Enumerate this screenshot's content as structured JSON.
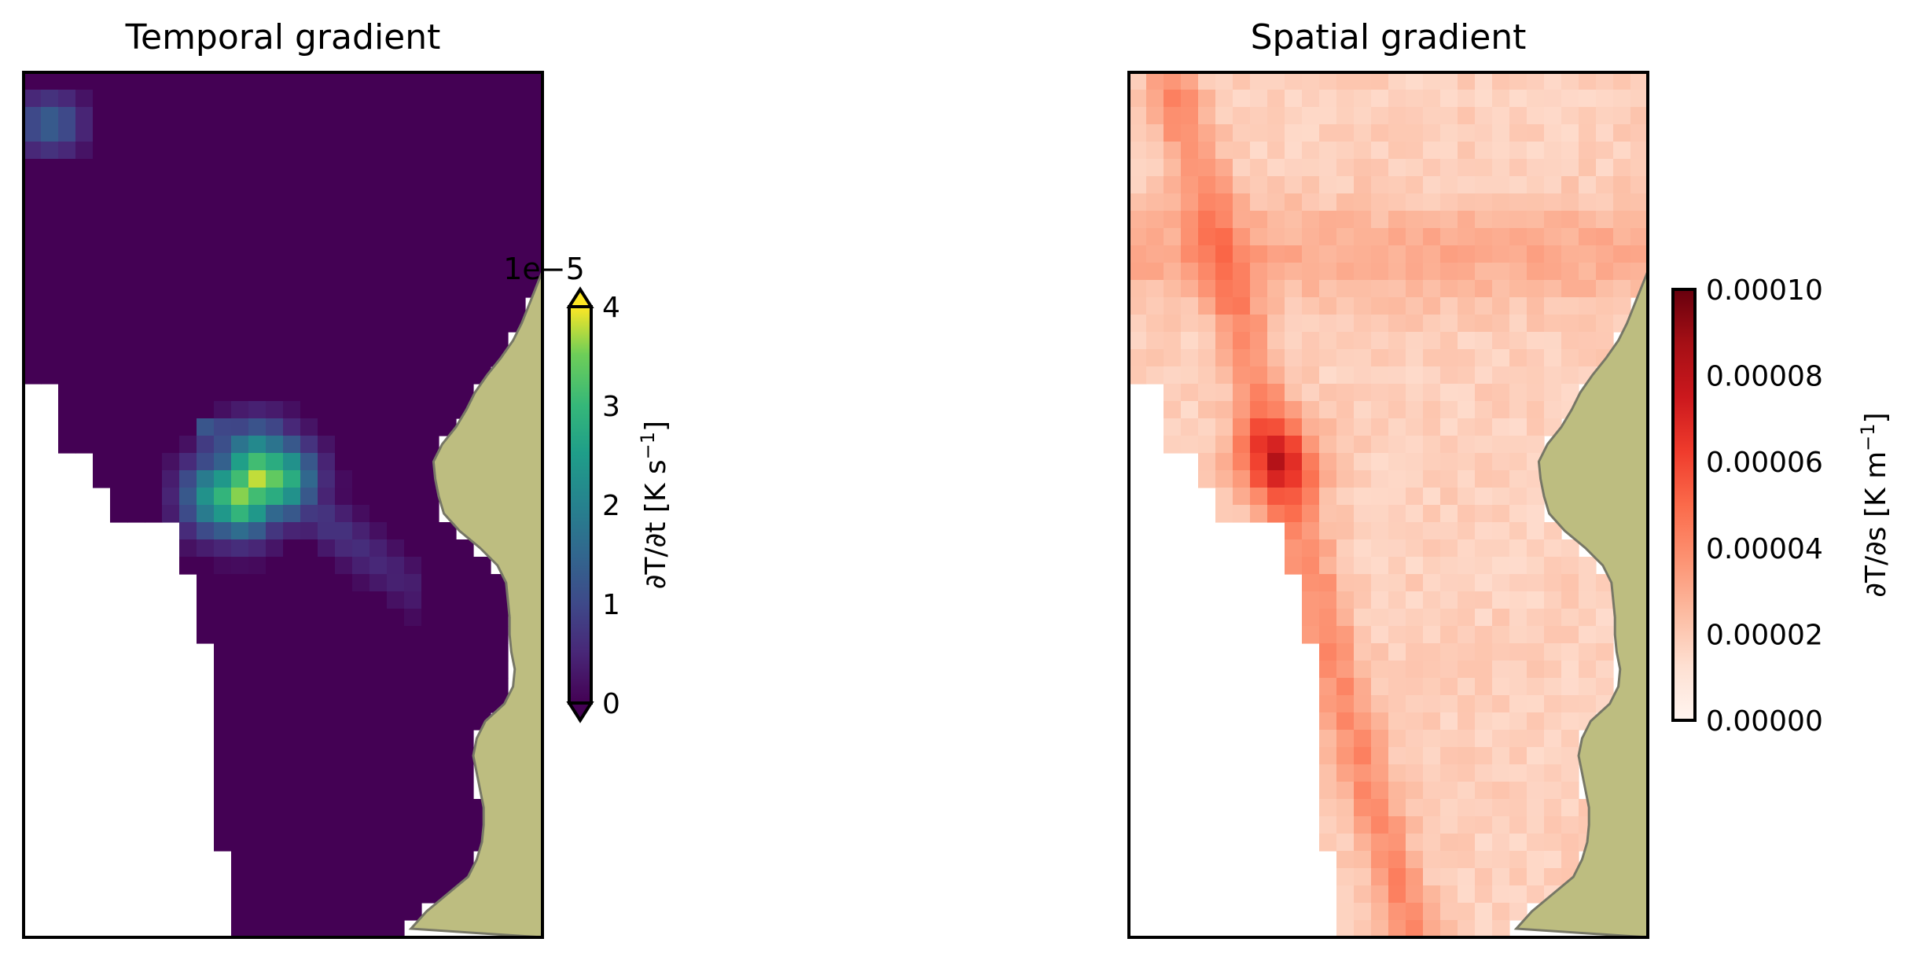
{
  "chart_data": [
    {
      "type": "heatmap",
      "title": "Temporal gradient",
      "colormap": "viridis",
      "extend": "both",
      "vmin": 0,
      "vmax": 4,
      "colorbar": {
        "label": "∂T/∂t [K s",
        "label_exponent": "−1",
        "label_close": "]",
        "offset_text": "1e−5",
        "ticks": [
          "0",
          "1",
          "2",
          "3",
          "4"
        ]
      },
      "grid": {
        "cols": 30,
        "rows": 50,
        "mask_row_start": [
          0,
          0,
          0,
          0,
          0,
          0,
          0,
          0,
          0,
          0,
          0,
          0,
          0,
          0,
          0,
          0,
          0,
          0,
          2,
          2,
          2,
          2,
          4,
          4,
          5,
          5,
          9,
          9,
          9,
          10,
          10,
          10,
          10,
          11,
          11,
          11,
          11,
          11,
          11,
          11,
          11,
          11,
          11,
          11,
          11,
          12,
          12,
          12,
          12,
          12
        ],
        "land_boundary_cols": [
          30,
          30,
          30,
          30,
          30,
          30,
          30,
          30,
          30,
          30,
          30,
          30,
          29.6,
          29.2,
          28.8,
          28.3,
          27.6,
          26.8,
          26.1,
          25.6,
          25.0,
          24.2,
          23.7,
          23.8,
          24.0,
          24.3,
          25.2,
          26.4,
          27.4,
          27.9,
          28.0,
          28.1,
          28.1,
          28.2,
          28.4,
          28.3,
          27.8,
          26.7,
          26.2,
          26.0,
          26.2,
          26.4,
          26.6,
          26.6,
          26.5,
          26.2,
          25.7,
          24.5,
          23.3,
          22.4
        ],
        "values": "temporal gradient ×1e−5 K s−1; 0 over most of the ocean, peak ≈ 4 near the lower-left edge"
      }
    },
    {
      "type": "heatmap",
      "title": "Spatial gradient",
      "colormap": "Reds",
      "vmin": 0,
      "vmax": 0.0001,
      "colorbar": {
        "label": "∂T/∂s [K m",
        "label_exponent": "−1",
        "label_close": "]",
        "ticks": [
          "0.00000",
          "0.00002",
          "0.00004",
          "0.00006",
          "0.00008",
          "0.00010"
        ]
      },
      "values": "spatial gradient in K m−1; mostly 0.00001–0.00003, maximum ≈ 0.00007 along the left coastal band"
    }
  ],
  "colors": {
    "land": "#bdbd80",
    "coastline": "#777766",
    "frame": "#000000"
  }
}
